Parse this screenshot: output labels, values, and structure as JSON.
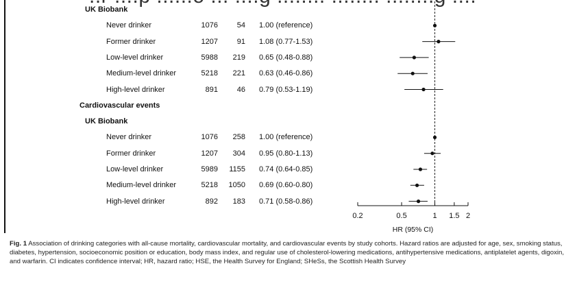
{
  "header_cut_text": "..r ....p ......o ... ....g ........ ........ ........g ....",
  "chart_data": {
    "type": "forest",
    "xlabel": "HR (95% CI)",
    "xscale": "log",
    "xticks": [
      "0.2",
      "0.5",
      "1",
      "1.5",
      "2"
    ],
    "xtick_values": [
      0.2,
      0.5,
      1,
      1.5,
      2
    ],
    "xlim": [
      0.2,
      2
    ],
    "reference_line": 1,
    "sections": [
      {
        "heading": "",
        "cohort": "UK Biobank",
        "rows": [
          {
            "label": "Never drinker",
            "n": "1076",
            "events": "54",
            "hr_text": "1.00 (reference)",
            "hr": 1.0,
            "lo": 1.0,
            "hi": 1.0
          },
          {
            "label": "Former drinker",
            "n": "1207",
            "events": "91",
            "hr_text": "1.08 (0.77-1.53)",
            "hr": 1.08,
            "lo": 0.77,
            "hi": 1.53
          },
          {
            "label": "Low-level drinker",
            "n": "5988",
            "events": "219",
            "hr_text": "0.65 (0.48-0.88)",
            "hr": 0.65,
            "lo": 0.48,
            "hi": 0.88
          },
          {
            "label": "Medium-level drinker",
            "n": "5218",
            "events": "221",
            "hr_text": "0.63 (0.46-0.86)",
            "hr": 0.63,
            "lo": 0.46,
            "hi": 0.86
          },
          {
            "label": "High-level drinker",
            "n": "891",
            "events": "46",
            "hr_text": "0.79 (0.53-1.19)",
            "hr": 0.79,
            "lo": 0.53,
            "hi": 1.19
          }
        ]
      },
      {
        "heading": "Cardiovascular events",
        "cohort": "UK Biobank",
        "rows": [
          {
            "label": "Never drinker",
            "n": "1076",
            "events": "258",
            "hr_text": "1.00 (reference)",
            "hr": 1.0,
            "lo": 1.0,
            "hi": 1.0
          },
          {
            "label": "Former drinker",
            "n": "1207",
            "events": "304",
            "hr_text": "0.95 (0.80-1.13)",
            "hr": 0.95,
            "lo": 0.8,
            "hi": 1.13
          },
          {
            "label": "Low-level drinker",
            "n": "5989",
            "events": "1155",
            "hr_text": "0.74 (0.64-0.85)",
            "hr": 0.74,
            "lo": 0.64,
            "hi": 0.85
          },
          {
            "label": "Medium-level drinker",
            "n": "5218",
            "events": "1050",
            "hr_text": "0.69 (0.60-0.80)",
            "hr": 0.69,
            "lo": 0.6,
            "hi": 0.8
          },
          {
            "label": "High-level drinker",
            "n": "892",
            "events": "183",
            "hr_text": "0.71 (0.58-0.86)",
            "hr": 0.71,
            "lo": 0.58,
            "hi": 0.86
          }
        ]
      }
    ]
  },
  "caption": {
    "label": "Fig. 1",
    "text": "Association of drinking categories with all-cause mortality, cardiovascular mortality, and cardiovascular events by study cohorts. Hazard ratios are adjusted for age, sex, smoking status, diabetes, hypertension, socioeconomic position or education, body mass index, and regular use of cholesterol-lowering medications, antihypertensive medications, antiplatelet agents, digoxin, and warfarin. CI indicates confidence interval; HR, hazard ratio; HSE, the Health Survey for England; SHeSs, the Scottish Health Survey"
  }
}
